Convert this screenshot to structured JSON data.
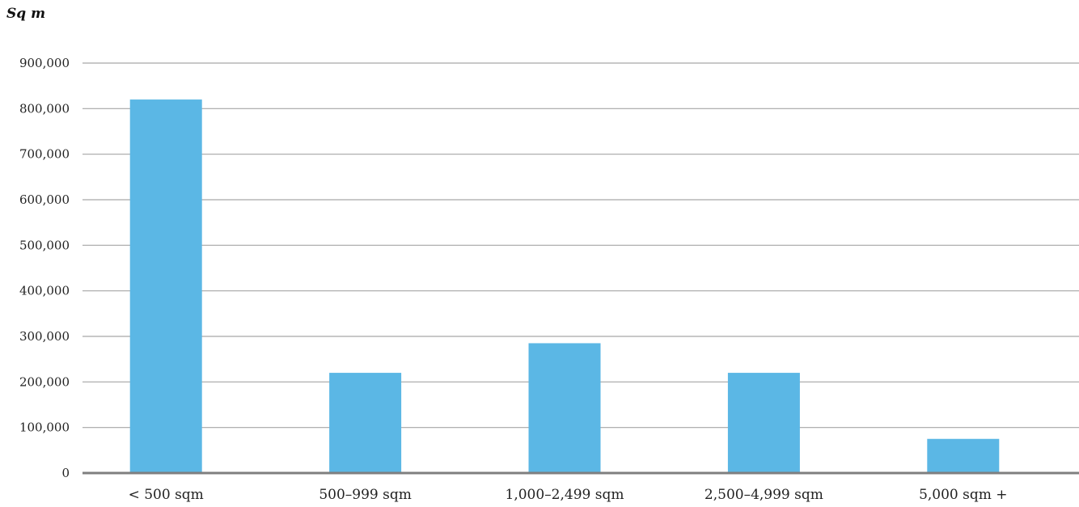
{
  "chart_data": {
    "type": "bar",
    "title": "",
    "ylabel": "Sq m",
    "xlabel": "",
    "categories": [
      "< 500 sqm",
      "500–999 sqm",
      "1,000–2,499 sqm",
      "2,500–4,999 sqm",
      "5,000 sqm +"
    ],
    "values": [
      820000,
      220000,
      285000,
      220000,
      75000
    ],
    "ylim": [
      0,
      900000
    ],
    "yticks": [
      0,
      100000,
      200000,
      300000,
      400000,
      500000,
      600000,
      700000,
      800000,
      900000
    ],
    "ytick_labels": [
      "0",
      "100,000",
      "200,000",
      "300,000",
      "400,000",
      "500,000",
      "600,000",
      "700,000",
      "800,000",
      "900,000"
    ],
    "grid": true,
    "legend": "none",
    "colors": {
      "bar": "#5bb7e5",
      "grid": "#a6a6a6",
      "baseline": "#7f7f7f",
      "text": "#222222"
    }
  }
}
